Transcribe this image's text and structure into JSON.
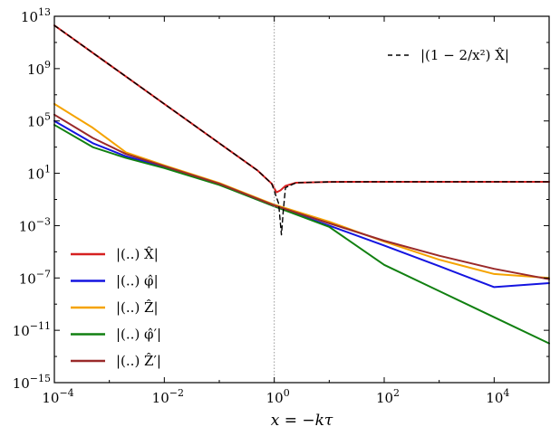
{
  "chart_data": {
    "type": "line",
    "xlabel": "x = −kτ",
    "ylabel": "",
    "xscale": "log",
    "yscale": "log",
    "xlim": [
      0.0001,
      100000
    ],
    "ylim": [
      1e-15,
      10000000000000.0
    ],
    "x_ticks": [
      {
        "value": 0.0001,
        "base": "10",
        "exp": "−4"
      },
      {
        "value": 0.01,
        "base": "10",
        "exp": "−2"
      },
      {
        "value": 1,
        "base": "10",
        "exp": "0"
      },
      {
        "value": 100,
        "base": "10",
        "exp": "2"
      },
      {
        "value": 10000,
        "base": "10",
        "exp": "4"
      }
    ],
    "y_ticks": [
      {
        "value": 1e-15,
        "base": "10",
        "exp": "−15"
      },
      {
        "value": 1e-11,
        "base": "10",
        "exp": "−11"
      },
      {
        "value": 1e-07,
        "base": "10",
        "exp": "−7"
      },
      {
        "value": 0.001,
        "base": "10",
        "exp": "−3"
      },
      {
        "value": 10,
        "base": "10",
        "exp": "1"
      },
      {
        "value": 100000,
        "base": "10",
        "exp": "5"
      },
      {
        "value": 1000000000,
        "base": "10",
        "exp": "9"
      },
      {
        "value": 10000000000000,
        "base": "10",
        "exp": "13"
      }
    ],
    "vline": {
      "x": 1,
      "style": "dotted",
      "color": "#999999"
    },
    "grid": false,
    "legend_placement": [
      "top-right",
      "bottom-left"
    ],
    "series": [
      {
        "name": "|(..) X̂|",
        "color": "#d62020",
        "style": "solid",
        "legend": "bottom-left",
        "points": [
          [
            0.0001,
            2000000000000.0
          ],
          [
            0.001,
            2000000000.0
          ],
          [
            0.01,
            2000000.0
          ],
          [
            0.1,
            2000
          ],
          [
            0.5,
            16
          ],
          [
            0.9,
            1.6
          ],
          [
            1.1,
            0.35
          ],
          [
            1.3,
            0.5
          ],
          [
            1.6,
            1.1
          ],
          [
            2.5,
            1.9
          ],
          [
            10,
            2.2
          ],
          [
            100,
            2.25
          ],
          [
            100000,
            2.25
          ]
        ]
      },
      {
        "name": "|(..) φ̂|",
        "color": "#1414e0",
        "style": "solid",
        "legend": "bottom-left",
        "points": [
          [
            0.0001,
            100000.0
          ],
          [
            0.0005,
            2000
          ],
          [
            0.002,
            200
          ],
          [
            0.01,
            30
          ],
          [
            0.1,
            1.4
          ],
          [
            1,
            0.03
          ],
          [
            10,
            0.001
          ],
          [
            100,
            3e-05
          ],
          [
            1000,
            8e-07
          ],
          [
            10000,
            2e-08
          ],
          [
            100000,
            4e-08
          ]
        ]
      },
      {
        "name": "|(..) Ẑ|",
        "color": "#f5a300",
        "style": "solid",
        "legend": "bottom-left",
        "points": [
          [
            0.0001,
            2000000.0
          ],
          [
            0.0005,
            30000
          ],
          [
            0.002,
            400
          ],
          [
            0.01,
            40
          ],
          [
            0.1,
            1.8
          ],
          [
            1,
            0.04
          ],
          [
            10,
            0.002
          ],
          [
            100,
            6e-05
          ],
          [
            1000,
            2.5e-06
          ],
          [
            10000,
            2e-07
          ],
          [
            100000,
            1e-07
          ]
        ]
      },
      {
        "name": "|(..) φ̂′|",
        "color": "#118011",
        "style": "solid",
        "legend": "bottom-left",
        "points": [
          [
            0.0001,
            50000
          ],
          [
            0.0005,
            1000
          ],
          [
            0.002,
            150
          ],
          [
            0.01,
            25
          ],
          [
            0.1,
            1.3
          ],
          [
            1,
            0.03
          ],
          [
            10,
            0.0008
          ],
          [
            100,
            1e-06
          ],
          [
            1000,
            1e-08
          ],
          [
            10000,
            1e-10
          ],
          [
            100000,
            1e-12
          ]
        ]
      },
      {
        "name": "|(..) Ẑ′|",
        "color": "#9a2a2a",
        "style": "solid",
        "legend": "bottom-left",
        "points": [
          [
            0.0001,
            300000.0
          ],
          [
            0.0005,
            5000
          ],
          [
            0.002,
            300
          ],
          [
            0.01,
            35
          ],
          [
            0.1,
            1.6
          ],
          [
            1,
            0.035
          ],
          [
            10,
            0.0015
          ],
          [
            100,
            7e-05
          ],
          [
            1000,
            5e-06
          ],
          [
            10000,
            5e-07
          ],
          [
            100000,
            8e-08
          ]
        ]
      },
      {
        "name": "|(1 − 2/x²) X̂|",
        "color": "#000000",
        "style": "dashed",
        "legend": "top-right",
        "points": [
          [
            0.0001,
            2000000000000.0
          ],
          [
            0.001,
            2000000000.0
          ],
          [
            0.01,
            2000000.0
          ],
          [
            0.1,
            2000
          ],
          [
            0.5,
            16
          ],
          [
            0.9,
            1.6
          ],
          [
            1.2,
            0.05
          ],
          [
            1.35,
            0.0002
          ],
          [
            1.45,
            0.01
          ],
          [
            1.6,
            0.8
          ],
          [
            2.5,
            1.9
          ],
          [
            10,
            2.2
          ],
          [
            100,
            2.25
          ],
          [
            100000,
            2.25
          ]
        ]
      }
    ]
  }
}
